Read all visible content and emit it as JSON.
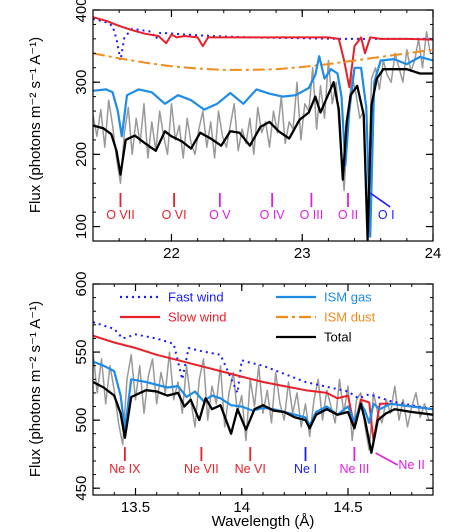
{
  "chart_data": [
    {
      "type": "line",
      "panel": "top",
      "xlim": [
        21.4,
        24.0
      ],
      "ylim": [
        80,
        400
      ],
      "xticks": [
        22,
        23,
        24
      ],
      "xtick_labels": [
        "22",
        "23",
        "24"
      ],
      "yticks": [
        100,
        200,
        300,
        400
      ],
      "ytick_labels": [
        "100",
        "200",
        "300",
        "400"
      ],
      "xlabel": "",
      "ylabel": "Flux (photons m⁻² s⁻¹ A⁻¹)",
      "series": [
        {
          "key": "fast_wind",
          "color": "#1a1aff",
          "dash": "2,4",
          "x": [
            21.4,
            21.5,
            21.55,
            21.58,
            21.61,
            21.64,
            21.7,
            21.85,
            21.88,
            21.91,
            21.95,
            22.1,
            22.3,
            22.6,
            23.0,
            23.3,
            23.5,
            23.7,
            24.0
          ],
          "y": [
            388,
            383,
            378,
            360,
            330,
            362,
            374,
            370,
            360,
            368,
            368,
            366,
            364,
            362,
            361,
            360,
            360,
            360,
            360
          ]
        },
        {
          "key": "slow_wind",
          "color": "#e8202a",
          "dash": "",
          "x": [
            21.4,
            21.5,
            21.6,
            21.7,
            21.8,
            21.9,
            21.96,
            22.0,
            22.04,
            22.1,
            22.2,
            22.24,
            22.28,
            22.35,
            22.6,
            22.9,
            23.2,
            23.28,
            23.32,
            23.36,
            23.4,
            23.45,
            23.48,
            23.52,
            23.6,
            23.8,
            24.0
          ],
          "y": [
            390,
            385,
            378,
            372,
            367,
            364,
            354,
            366,
            362,
            364,
            362,
            350,
            362,
            362,
            362,
            362,
            362,
            360,
            330,
            293,
            350,
            362,
            340,
            362,
            360,
            360,
            359
          ]
        },
        {
          "key": "ism_dust",
          "color": "#f08c1e",
          "dash": "12,4,3,4",
          "x": [
            21.4,
            21.6,
            21.8,
            22.0,
            22.2,
            22.4,
            22.6,
            22.8,
            23.0,
            23.2,
            23.4,
            23.6,
            23.8,
            24.0
          ],
          "y": [
            340,
            333,
            327,
            322,
            319,
            317,
            317,
            318,
            321,
            325,
            330,
            335,
            340,
            345
          ]
        },
        {
          "key": "ism_gas",
          "color": "#1e8ce6",
          "dash": "",
          "x": [
            21.4,
            21.5,
            21.55,
            21.59,
            21.62,
            21.66,
            21.75,
            21.85,
            21.95,
            22.05,
            22.15,
            22.25,
            22.35,
            22.45,
            22.55,
            22.65,
            22.75,
            22.85,
            22.95,
            23.05,
            23.1,
            23.13,
            23.17,
            23.22,
            23.27,
            23.3,
            23.33,
            23.36,
            23.4,
            23.45,
            23.49,
            23.52,
            23.55,
            23.6,
            23.7,
            23.8,
            23.9,
            24.0
          ],
          "y": [
            288,
            290,
            286,
            260,
            225,
            282,
            290,
            286,
            270,
            282,
            275,
            262,
            270,
            285,
            270,
            290,
            284,
            280,
            282,
            292,
            310,
            336,
            305,
            318,
            312,
            280,
            185,
            260,
            320,
            320,
            265,
            86,
            300,
            330,
            332,
            325,
            335,
            330
          ]
        },
        {
          "key": "total",
          "color": "#000000",
          "dash": "",
          "x": [
            21.4,
            21.48,
            21.54,
            21.58,
            21.61,
            21.65,
            21.72,
            21.8,
            21.88,
            21.95,
            22.0,
            22.08,
            22.15,
            22.22,
            22.3,
            22.38,
            22.45,
            22.52,
            22.6,
            22.68,
            22.75,
            22.82,
            22.9,
            22.98,
            23.05,
            23.1,
            23.14,
            23.18,
            23.24,
            23.28,
            23.31,
            23.34,
            23.37,
            23.42,
            23.47,
            23.5,
            23.53,
            23.57,
            23.62,
            23.7,
            23.8,
            23.9,
            24.0
          ],
          "y": [
            240,
            236,
            228,
            205,
            172,
            220,
            226,
            215,
            205,
            232,
            225,
            218,
            208,
            230,
            222,
            212,
            232,
            230,
            212,
            238,
            245,
            232,
            222,
            248,
            258,
            280,
            258,
            275,
            300,
            262,
            165,
            245,
            282,
            295,
            255,
            82,
            268,
            305,
            318,
            318,
            318,
            312,
            312
          ]
        },
        {
          "key": "data",
          "color": "#999999",
          "dash": "",
          "x": [
            21.4,
            21.43,
            21.46,
            21.49,
            21.52,
            21.55,
            21.58,
            21.61,
            21.64,
            21.67,
            21.7,
            21.73,
            21.76,
            21.79,
            21.82,
            21.85,
            21.88,
            21.91,
            21.94,
            21.97,
            22.0,
            22.03,
            22.06,
            22.09,
            22.12,
            22.15,
            22.18,
            22.21,
            22.24,
            22.27,
            22.3,
            22.33,
            22.36,
            22.39,
            22.42,
            22.45,
            22.48,
            22.51,
            22.54,
            22.57,
            22.6,
            22.63,
            22.66,
            22.69,
            22.72,
            22.75,
            22.78,
            22.81,
            22.84,
            22.87,
            22.9,
            22.93,
            22.96,
            22.99,
            23.02,
            23.05,
            23.08,
            23.11,
            23.14,
            23.17,
            23.2,
            23.23,
            23.26,
            23.29,
            23.32,
            23.35,
            23.38,
            23.41,
            23.44,
            23.47,
            23.5,
            23.53,
            23.56,
            23.59,
            23.62,
            23.65,
            23.68,
            23.71,
            23.74,
            23.77,
            23.8,
            23.83,
            23.86,
            23.89,
            23.92,
            23.95,
            23.98
          ],
          "y": [
            255,
            225,
            262,
            210,
            275,
            240,
            195,
            160,
            230,
            265,
            200,
            250,
            215,
            270,
            195,
            245,
            205,
            260,
            225,
            200,
            270,
            220,
            240,
            195,
            250,
            215,
            200,
            235,
            260,
            210,
            245,
            195,
            260,
            225,
            210,
            240,
            270,
            205,
            235,
            215,
            250,
            200,
            265,
            230,
            245,
            210,
            260,
            230,
            280,
            215,
            245,
            235,
            300,
            220,
            270,
            260,
            320,
            235,
            295,
            250,
            330,
            270,
            300,
            215,
            150,
            250,
            310,
            285,
            250,
            260,
            95,
            305,
            320,
            290,
            330,
            310,
            300,
            340,
            320,
            300,
            345,
            315,
            330,
            360,
            320,
            370,
            340
          ]
        }
      ],
      "ion_labels": [
        {
          "text": "O VII",
          "x": 21.61,
          "color": "#e8202a"
        },
        {
          "text": "O VI",
          "x": 22.02,
          "color": "#e8202a"
        },
        {
          "text": "O V",
          "x": 22.37,
          "color": "#e020e0"
        },
        {
          "text": "O IV",
          "x": 22.77,
          "color": "#e020e0"
        },
        {
          "text": "O III",
          "x": 23.07,
          "color": "#e020e0"
        },
        {
          "text": "O II",
          "x": 23.35,
          "color": "#e020e0"
        },
        {
          "text": "O I",
          "x": 23.52,
          "color": "#1a1aff"
        }
      ]
    },
    {
      "type": "line",
      "panel": "bottom",
      "xlim": [
        13.3,
        14.9
      ],
      "ylim": [
        445,
        600
      ],
      "xticks": [
        13.5,
        14.0,
        14.5
      ],
      "xtick_labels": [
        "13.5",
        "14",
        "14.5"
      ],
      "yticks": [
        450,
        500,
        550,
        600
      ],
      "ytick_labels": [
        "450",
        "500",
        "550",
        "600"
      ],
      "xlabel": "Wavelength (Å)",
      "ylabel": "Flux (photons m⁻² s⁻¹ A⁻¹)",
      "legend": [
        {
          "label": "Fast wind",
          "color": "#1a1aff",
          "dash": "2,4"
        },
        {
          "label": "Slow wind",
          "color": "#e8202a",
          "dash": ""
        },
        {
          "label": "ISM gas",
          "color": "#1e8ce6",
          "dash": ""
        },
        {
          "label": "ISM dust",
          "color": "#f08c1e",
          "dash": "12,4,3,4"
        },
        {
          "label": "Total",
          "color": "#000000",
          "dash": ""
        }
      ],
      "series": [
        {
          "key": "fast_wind",
          "color": "#1a1aff",
          "dash": "2,4",
          "x": [
            13.3,
            13.4,
            13.44,
            13.5,
            13.6,
            13.68,
            13.72,
            13.75,
            13.8,
            13.9,
            13.98,
            14.0,
            14.02,
            14.1,
            14.3,
            14.5,
            14.55,
            14.6,
            14.7,
            14.8,
            14.9
          ],
          "y": [
            572,
            567,
            560,
            563,
            560,
            556,
            530,
            553,
            551,
            548,
            520,
            544,
            543,
            540,
            528,
            521,
            516,
            519,
            514,
            511,
            508
          ]
        },
        {
          "key": "slow_wind",
          "color": "#e8202a",
          "dash": "",
          "x": [
            13.3,
            13.4,
            13.5,
            13.6,
            13.7,
            13.8,
            13.9,
            14.0,
            14.1,
            14.2,
            14.3,
            14.4,
            14.45,
            14.5,
            14.53,
            14.56,
            14.6,
            14.62,
            14.65,
            14.7,
            14.8,
            14.9
          ],
          "y": [
            562,
            557,
            553,
            548,
            544,
            540,
            536,
            532,
            528,
            525,
            522,
            520,
            516,
            518,
            495,
            515,
            513,
            485,
            512,
            512,
            510,
            508
          ]
        },
        {
          "key": "ism_gas",
          "color": "#1e8ce6",
          "dash": "",
          "x": [
            13.3,
            13.35,
            13.4,
            13.43,
            13.45,
            13.48,
            13.55,
            13.65,
            13.7,
            13.74,
            13.78,
            13.82,
            13.86,
            13.9,
            13.95,
            14.0,
            14.05,
            14.1,
            14.15,
            14.2,
            14.25,
            14.3,
            14.32,
            14.35,
            14.4,
            14.45,
            14.5,
            14.53,
            14.56,
            14.58,
            14.6,
            14.62,
            14.65,
            14.7,
            14.8,
            14.9
          ],
          "y": [
            543,
            540,
            536,
            518,
            493,
            530,
            528,
            524,
            525,
            517,
            521,
            514,
            518,
            516,
            511,
            510,
            507,
            509,
            508,
            506,
            504,
            502,
            496,
            506,
            510,
            504,
            510,
            499,
            512,
            507,
            498,
            512,
            508,
            512,
            510,
            508
          ]
        },
        {
          "key": "total",
          "color": "#000000",
          "dash": "",
          "x": [
            13.3,
            13.35,
            13.4,
            13.43,
            13.45,
            13.48,
            13.55,
            13.6,
            13.65,
            13.7,
            13.73,
            13.76,
            13.8,
            13.83,
            13.86,
            13.9,
            13.95,
            13.98,
            14.02,
            14.06,
            14.1,
            14.15,
            14.2,
            14.25,
            14.3,
            14.32,
            14.35,
            14.4,
            14.45,
            14.5,
            14.53,
            14.56,
            14.58,
            14.61,
            14.64,
            14.68,
            14.72,
            14.8,
            14.9
          ],
          "y": [
            528,
            524,
            518,
            505,
            487,
            517,
            522,
            521,
            518,
            520,
            510,
            515,
            500,
            516,
            508,
            511,
            490,
            508,
            493,
            508,
            511,
            507,
            506,
            502,
            500,
            494,
            504,
            508,
            504,
            506,
            494,
            512,
            500,
            476,
            500,
            505,
            508,
            506,
            504
          ]
        },
        {
          "key": "data",
          "color": "#999999",
          "dash": "",
          "x": [
            13.3,
            13.32,
            13.34,
            13.36,
            13.38,
            13.4,
            13.42,
            13.44,
            13.46,
            13.48,
            13.5,
            13.52,
            13.54,
            13.56,
            13.58,
            13.6,
            13.62,
            13.64,
            13.66,
            13.68,
            13.7,
            13.72,
            13.74,
            13.76,
            13.78,
            13.8,
            13.82,
            13.84,
            13.86,
            13.88,
            13.9,
            13.92,
            13.94,
            13.96,
            13.98,
            14.0,
            14.02,
            14.04,
            14.06,
            14.08,
            14.1,
            14.12,
            14.14,
            14.16,
            14.18,
            14.2,
            14.22,
            14.24,
            14.26,
            14.28,
            14.3,
            14.32,
            14.34,
            14.36,
            14.38,
            14.4,
            14.42,
            14.44,
            14.46,
            14.48,
            14.5,
            14.52,
            14.54,
            14.56,
            14.58,
            14.6,
            14.62,
            14.64,
            14.66,
            14.68,
            14.7,
            14.72,
            14.74,
            14.76,
            14.78,
            14.8,
            14.82,
            14.84,
            14.86,
            14.88
          ],
          "y": [
            550,
            520,
            545,
            512,
            540,
            522,
            498,
            482,
            530,
            548,
            515,
            540,
            505,
            532,
            545,
            512,
            535,
            520,
            550,
            515,
            528,
            505,
            540,
            515,
            495,
            530,
            545,
            500,
            525,
            512,
            540,
            495,
            520,
            535,
            505,
            518,
            485,
            530,
            510,
            540,
            505,
            522,
            498,
            535,
            512,
            500,
            528,
            505,
            520,
            495,
            512,
            488,
            515,
            530,
            500,
            522,
            510,
            498,
            530,
            505,
            525,
            485,
            515,
            520,
            495,
            478,
            520,
            505,
            498,
            515,
            505,
            525,
            500,
            515,
            495,
            510,
            520,
            502,
            512,
            500
          ]
        }
      ],
      "ion_labels": [
        {
          "text": "Ne IX",
          "x": 13.45,
          "color": "#e8202a"
        },
        {
          "text": "Ne VII",
          "x": 13.81,
          "color": "#e8202a"
        },
        {
          "text": "Ne VI",
          "x": 14.04,
          "color": "#e8202a"
        },
        {
          "text": "Ne I",
          "x": 14.3,
          "color": "#1a1aff"
        },
        {
          "text": "Ne III",
          "x": 14.53,
          "color": "#e020e0"
        },
        {
          "text": "Ne II",
          "x": 14.63,
          "color": "#e020e0"
        }
      ]
    }
  ]
}
